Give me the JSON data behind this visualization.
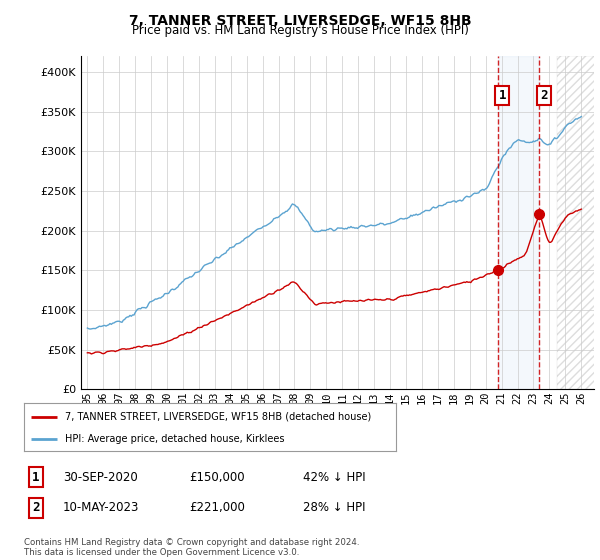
{
  "title": "7, TANNER STREET, LIVERSEDGE, WF15 8HB",
  "subtitle": "Price paid vs. HM Land Registry's House Price Index (HPI)",
  "legend_line1": "7, TANNER STREET, LIVERSEDGE, WF15 8HB (detached house)",
  "legend_line2": "HPI: Average price, detached house, Kirklees",
  "annotation1_label": "1",
  "annotation1_date": "30-SEP-2020",
  "annotation1_price": "£150,000",
  "annotation1_hpi": "42% ↓ HPI",
  "annotation2_label": "2",
  "annotation2_date": "10-MAY-2023",
  "annotation2_price": "£221,000",
  "annotation2_hpi": "28% ↓ HPI",
  "footer": "Contains HM Land Registry data © Crown copyright and database right 2024.\nThis data is licensed under the Open Government Licence v3.0.",
  "hpi_color": "#5ba3d0",
  "price_color": "#cc0000",
  "sale1_year": 2020.75,
  "sale1_price": 150000,
  "sale2_year": 2023.36,
  "sale2_price": 221000,
  "ylim_max": 420000,
  "xlim_min": 1994.6,
  "xlim_max": 2026.8,
  "background_color": "#ffffff",
  "grid_color": "#cccccc"
}
